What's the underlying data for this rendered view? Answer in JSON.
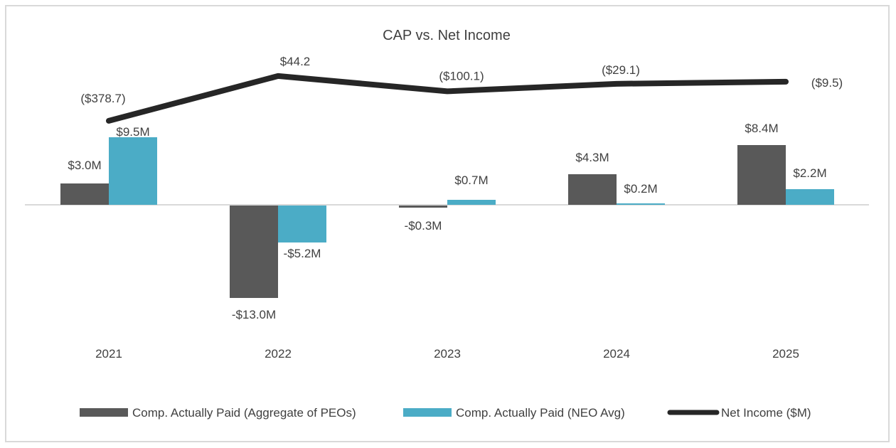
{
  "chart_data": {
    "type": "bar",
    "title": "CAP vs. Net Income",
    "xlabel": "",
    "ylabel": "",
    "categories": [
      "2021",
      "2022",
      "2023",
      "2024",
      "2025"
    ],
    "series": [
      {
        "name": "Comp. Actually Paid (Aggregate of PEOs)",
        "type": "bar",
        "color": "#595959",
        "values": [
          3.0,
          -13.0,
          -0.3,
          4.3,
          8.4
        ],
        "labels": [
          "$3.0M",
          "-$13.0M",
          "-$0.3M",
          "$4.3M",
          "$8.4M"
        ]
      },
      {
        "name": "Comp. Actually Paid (NEO Avg)",
        "type": "bar",
        "color": "#4bacc6",
        "values": [
          9.5,
          -5.2,
          0.7,
          0.2,
          2.2
        ],
        "labels": [
          "$9.5M",
          "-$5.2M",
          "$0.7M",
          "$0.2M",
          "$2.2M"
        ]
      },
      {
        "name": "Net Income ($M)",
        "type": "line",
        "axis": "secondary",
        "color": "#262626",
        "values": [
          -378.7,
          44.2,
          -100.1,
          -29.1,
          -9.5
        ],
        "labels": [
          "($378.7)",
          "$44.2",
          "($100.1)",
          "($29.1)",
          "($9.5)"
        ]
      }
    ],
    "primary_axis": {
      "unit": "$M",
      "ylim": [
        -17,
        14
      ],
      "visible": false,
      "gridlines": false
    },
    "secondary_axis": {
      "unit": "$M",
      "visible": false
    },
    "legend": {
      "position": "bottom"
    },
    "zero_line": true
  }
}
